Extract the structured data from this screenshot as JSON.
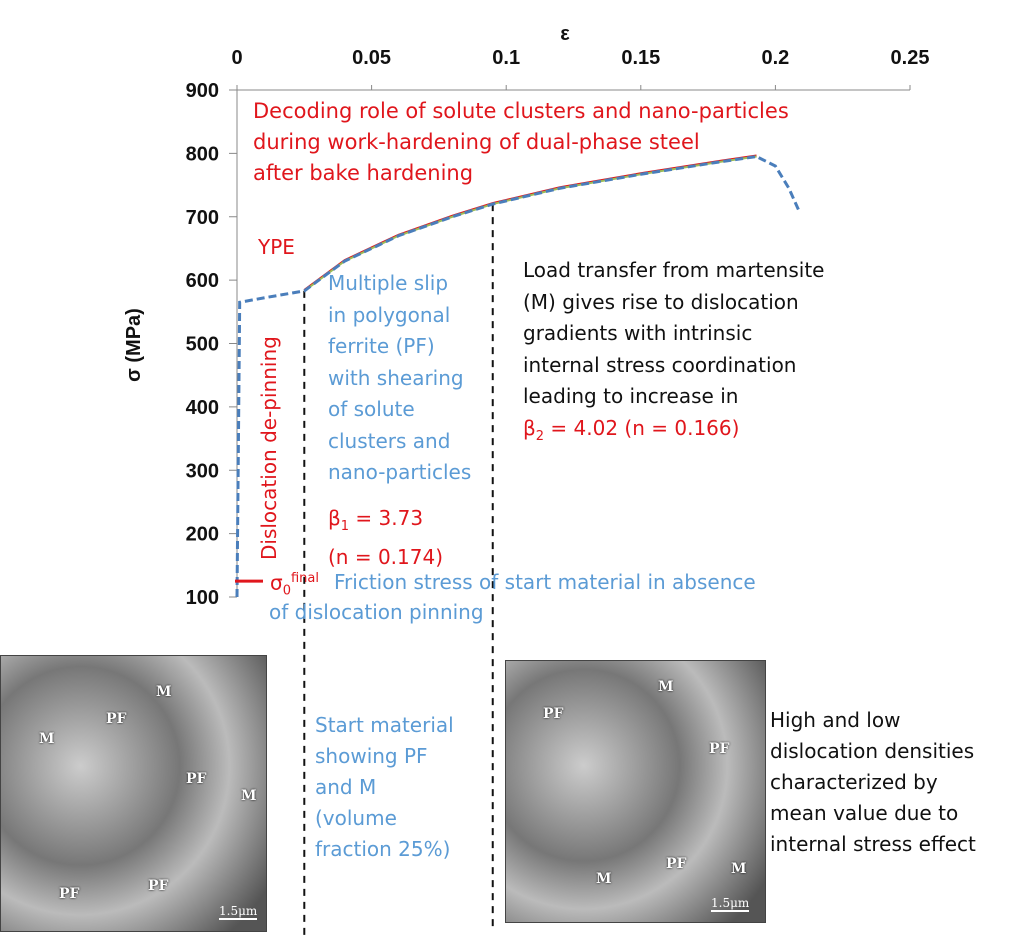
{
  "chart_data": {
    "type": "line",
    "xlabel": "ε",
    "ylabel": "σ (MPa)",
    "xlim": [
      0,
      0.25
    ],
    "ylim": [
      100,
      900
    ],
    "x_ticks": [
      "0",
      "0.05",
      "0.1",
      "0.15",
      "0.2",
      "0.25"
    ],
    "y_ticks": [
      "100",
      "200",
      "300",
      "400",
      "500",
      "600",
      "700",
      "800",
      "900"
    ],
    "x_axis_position": "top",
    "grid": false,
    "series": [
      {
        "x": [
          0.0,
          0.001,
          0.01,
          0.025,
          0.04,
          0.06,
          0.08,
          0.095,
          0.12,
          0.15,
          0.18,
          0.193,
          0.2,
          0.205,
          0.209
        ],
        "y": [
          100,
          565,
          572,
          583,
          630,
          670,
          700,
          720,
          745,
          767,
          787,
          795,
          780,
          745,
          707
        ]
      }
    ],
    "vlines": [
      0.025,
      0.095
    ],
    "marker_sigma0": 125,
    "colors": {
      "curve": "#4a7ebb",
      "fit": "#9bbb59",
      "fit2": "#e0161c"
    }
  },
  "annotations": {
    "title": [
      "Decoding role of solute clusters and nano-particles",
      "during work-hardening of dual-phase steel",
      "after bake hardening"
    ],
    "ype": "YPE",
    "depinning": "Dislocation de-pinning",
    "stage1": [
      "Multiple slip",
      "in polygonal",
      "ferrite (PF)",
      "with shearing",
      "of solute",
      "clusters and",
      "nano-particles"
    ],
    "beta1": "β",
    "beta1_sub": "1",
    "beta1_val": " = 3.73",
    "n1": "(n = 0.174)",
    "stage2": [
      "Load transfer from martensite",
      "(M) gives rise to dislocation",
      "gradients with intrinsic",
      "internal stress coordination",
      "leading to increase in"
    ],
    "beta2": "β",
    "beta2_sub": "2",
    "beta2_val": " = 4.02 (n = 0.166)",
    "sigma0": "σ",
    "sigma0_sub": "0",
    "sigma0_sup": "final",
    "friction": [
      "Friction stress of start material in absence",
      "of dislocation pinning"
    ],
    "start": [
      "Start material",
      "showing PF",
      "and M",
      "(volume",
      "fraction 25%)"
    ],
    "high_low": [
      "High and low",
      "dislocation densities",
      "characterized by",
      "mean value due to",
      "internal stress effect"
    ]
  },
  "micrographs": {
    "left": {
      "labels": [
        "M",
        "PF",
        "M",
        "PF",
        "M",
        "PF",
        "PF"
      ],
      "scale": "1.5μm"
    },
    "right": {
      "labels": [
        "M",
        "PF",
        "PF",
        "PF",
        "M",
        "M"
      ],
      "scale": "1.5μm"
    }
  }
}
